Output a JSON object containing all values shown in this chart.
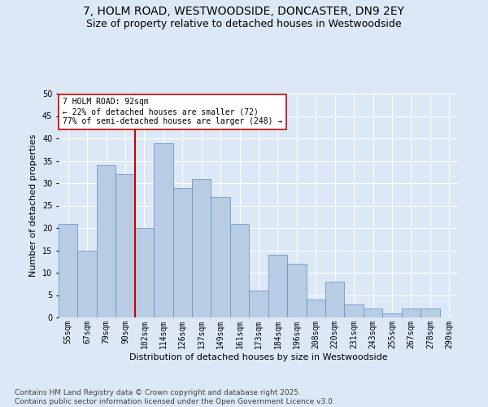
{
  "title": "7, HOLM ROAD, WESTWOODSIDE, DONCASTER, DN9 2EY",
  "subtitle": "Size of property relative to detached houses in Westwoodside",
  "xlabel": "Distribution of detached houses by size in Westwoodside",
  "ylabel": "Number of detached properties",
  "categories": [
    "55sqm",
    "67sqm",
    "79sqm",
    "90sqm",
    "102sqm",
    "114sqm",
    "126sqm",
    "137sqm",
    "149sqm",
    "161sqm",
    "173sqm",
    "184sqm",
    "196sqm",
    "208sqm",
    "220sqm",
    "231sqm",
    "243sqm",
    "255sqm",
    "267sqm",
    "278sqm",
    "290sqm"
  ],
  "values": [
    21,
    15,
    34,
    32,
    20,
    39,
    29,
    31,
    27,
    21,
    6,
    14,
    12,
    4,
    8,
    3,
    2,
    1,
    2,
    2,
    0
  ],
  "bar_color": "#b8cce4",
  "bar_edge_color": "#5b8dc8",
  "background_color": "#dce8f5",
  "grid_color": "#ffffff",
  "vline_x_index": 3,
  "vline_color": "#cc0000",
  "annotation_text": "7 HOLM ROAD: 92sqm\n← 22% of detached houses are smaller (72)\n77% of semi-detached houses are larger (248) →",
  "annotation_box_facecolor": "#ffffff",
  "annotation_box_edgecolor": "#cc0000",
  "ylim": [
    0,
    50
  ],
  "yticks": [
    0,
    5,
    10,
    15,
    20,
    25,
    30,
    35,
    40,
    45,
    50
  ],
  "footer": "Contains HM Land Registry data © Crown copyright and database right 2025.\nContains public sector information licensed under the Open Government Licence v3.0.",
  "title_fontsize": 10,
  "subtitle_fontsize": 9,
  "axis_label_fontsize": 8,
  "tick_fontsize": 7,
  "annot_fontsize": 7,
  "footer_fontsize": 6.5
}
